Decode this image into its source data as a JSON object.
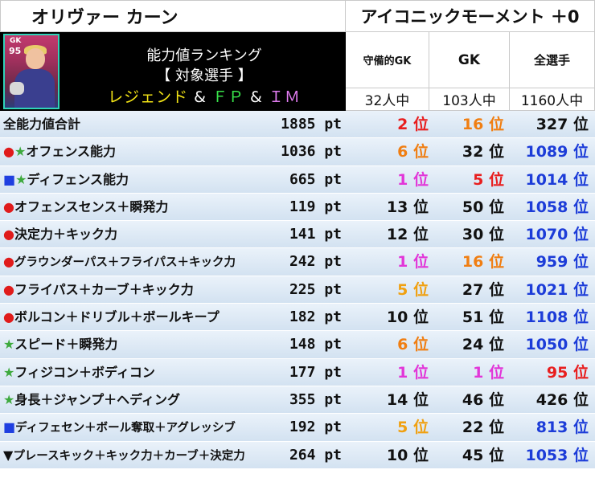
{
  "player_name": "オリヴァー カーン",
  "moment_name": "アイコニックモーメント ＋0",
  "card": {
    "position": "GK",
    "rating": "95"
  },
  "banner": {
    "title": "能力値ランキング",
    "subtitle": "【 対象選手 】",
    "cat_legend": "レジェンド",
    "cat_amp1": " & ",
    "cat_fp": "ＦＰ",
    "cat_amp2": " & ",
    "cat_im": "ＩＭ"
  },
  "columns": [
    {
      "label": "守備的GK",
      "count": "32人中"
    },
    {
      "label": "GK",
      "count": "103人中"
    },
    {
      "label": "全選手",
      "count": "1160人中"
    }
  ],
  "rank_suffix": "位",
  "rows": [
    {
      "marks": [],
      "label": "全能力値合計",
      "points": "1885 pt",
      "ranks": [
        "2",
        "16",
        "327"
      ],
      "colors": [
        "red",
        "orange",
        "black"
      ]
    },
    {
      "marks": [
        {
          "t": "●",
          "c": "red"
        },
        {
          "t": "★",
          "c": "green"
        }
      ],
      "label": "オフェンス能力",
      "points": "1036 pt",
      "ranks": [
        "6",
        "32",
        "1089"
      ],
      "colors": [
        "orange",
        "black",
        "blue"
      ]
    },
    {
      "marks": [
        {
          "t": "■",
          "c": "blue"
        },
        {
          "t": "★",
          "c": "green"
        }
      ],
      "label": "ディフェンス能力",
      "points": "665 pt",
      "ranks": [
        "1",
        "5",
        "1014"
      ],
      "colors": [
        "pink",
        "red",
        "blue"
      ]
    },
    {
      "marks": [
        {
          "t": "●",
          "c": "red"
        }
      ],
      "label": "オフェンスセンス＋瞬発力",
      "points": "119 pt",
      "ranks": [
        "13",
        "50",
        "1058"
      ],
      "colors": [
        "black",
        "black",
        "blue"
      ]
    },
    {
      "marks": [
        {
          "t": "●",
          "c": "red"
        }
      ],
      "label": "決定力＋キック力",
      "points": "141 pt",
      "ranks": [
        "12",
        "30",
        "1070"
      ],
      "colors": [
        "black",
        "black",
        "blue"
      ]
    },
    {
      "marks": [
        {
          "t": "●",
          "c": "red"
        }
      ],
      "label": "グラウンダーパス＋フライパス＋キック力",
      "points": "242 pt",
      "ranks": [
        "1",
        "16",
        "959"
      ],
      "colors": [
        "pink",
        "orange",
        "blue"
      ],
      "small": true
    },
    {
      "marks": [
        {
          "t": "●",
          "c": "red"
        }
      ],
      "label": "フライパス＋カーブ＋キック力",
      "points": "225 pt",
      "ranks": [
        "5",
        "27",
        "1021"
      ],
      "colors": [
        "gold",
        "black",
        "blue"
      ]
    },
    {
      "marks": [
        {
          "t": "●",
          "c": "red"
        }
      ],
      "label": "ボルコン＋ドリブル＋ボールキープ",
      "points": "182 pt",
      "ranks": [
        "10",
        "51",
        "1108"
      ],
      "colors": [
        "black",
        "black",
        "blue"
      ]
    },
    {
      "marks": [
        {
          "t": "★",
          "c": "green"
        }
      ],
      "label": "スピード＋瞬発力",
      "points": "148 pt",
      "ranks": [
        "6",
        "24",
        "1050"
      ],
      "colors": [
        "orange",
        "black",
        "blue"
      ]
    },
    {
      "marks": [
        {
          "t": "★",
          "c": "green"
        }
      ],
      "label": "フィジコン＋ボディコン",
      "points": "177 pt",
      "ranks": [
        "1",
        "1",
        "95"
      ],
      "colors": [
        "pink",
        "pink",
        "red"
      ]
    },
    {
      "marks": [
        {
          "t": "★",
          "c": "green"
        }
      ],
      "label": "身長＋ジャンプ＋ヘディング",
      "points": "355 pt",
      "ranks": [
        "14",
        "46",
        "426"
      ],
      "colors": [
        "black",
        "black",
        "black"
      ]
    },
    {
      "marks": [
        {
          "t": "■",
          "c": "blue"
        }
      ],
      "label": "ディフェセン＋ボール奪取＋アグレッシブ",
      "points": "192 pt",
      "ranks": [
        "5",
        "22",
        "813"
      ],
      "colors": [
        "gold",
        "black",
        "blue"
      ],
      "small": true
    },
    {
      "marks": [
        {
          "t": "▼",
          "c": "black"
        }
      ],
      "label": "プレースキック＋キック力＋カーブ＋決定力",
      "points": "264 pt",
      "ranks": [
        "10",
        "45",
        "1053"
      ],
      "colors": [
        "black",
        "black",
        "blue"
      ],
      "small": true
    }
  ]
}
